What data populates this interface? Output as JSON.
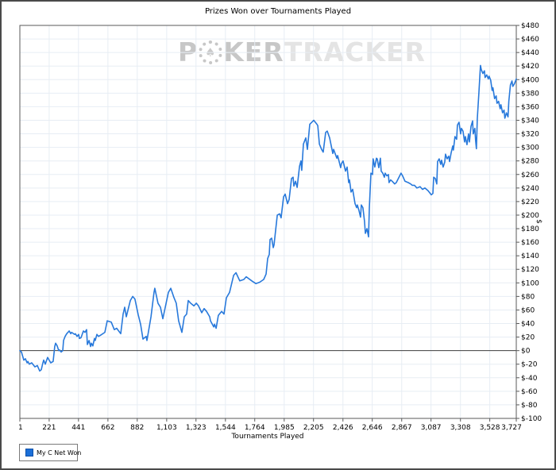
{
  "window": {
    "title": "Prizes Won over Tournaments Played"
  },
  "watermark": {
    "part1": "P",
    "chip": "spade",
    "part2": "KER",
    "part3": "TRACKER"
  },
  "legend": {
    "label": "My C Net Won",
    "swatch_color": "#1b6fd8"
  },
  "colors": {
    "line": "#2879db",
    "grid": "#e7edf4",
    "plot_border": "#5a5a5a",
    "zero_line": "#3c3c3c",
    "tick": "#5a5a5a",
    "label": "#000000"
  },
  "chart_data": {
    "type": "line",
    "title": "Prizes Won over Tournaments Played",
    "xlabel": "Tournaments Played",
    "ylabel": "$",
    "xlim": [
      1,
      3727
    ],
    "ylim": [
      -100,
      480
    ],
    "y_tick_step": 20,
    "y_tick_prefix": "$",
    "x_ticks": [
      1,
      221,
      441,
      662,
      882,
      1103,
      1323,
      1544,
      1764,
      1985,
      2205,
      2426,
      2646,
      2867,
      3087,
      3308,
      3528,
      3727
    ],
    "x_tick_labels": [
      "1",
      "221",
      "441",
      "662",
      "882",
      "1,103",
      "1,323",
      "1,544",
      "1,764",
      "1,985",
      "2,205",
      "2,426",
      "2,646",
      "2,867",
      "3,087",
      "3,308",
      "3,528",
      "3,727"
    ],
    "grid": true,
    "legend_position": "bottom-left",
    "series": [
      {
        "name": "My C Net Won",
        "color": "#2879db",
        "points": [
          [
            1,
            0
          ],
          [
            13,
            -2
          ],
          [
            31,
            -14
          ],
          [
            43,
            -12
          ],
          [
            55,
            -18
          ],
          [
            61,
            -16
          ],
          [
            72,
            -20
          ],
          [
            90,
            -18
          ],
          [
            114,
            -24
          ],
          [
            132,
            -22
          ],
          [
            150,
            -30
          ],
          [
            162,
            -28
          ],
          [
            174,
            -18
          ],
          [
            180,
            -14
          ],
          [
            192,
            -20
          ],
          [
            209,
            -10
          ],
          [
            221,
            -14
          ],
          [
            233,
            -18
          ],
          [
            251,
            -16
          ],
          [
            263,
            6
          ],
          [
            269,
            11
          ],
          [
            281,
            7
          ],
          [
            293,
            0
          ],
          [
            299,
            1
          ],
          [
            311,
            -2
          ],
          [
            323,
            0
          ],
          [
            329,
            15
          ],
          [
            341,
            21
          ],
          [
            353,
            25
          ],
          [
            371,
            29
          ],
          [
            383,
            25
          ],
          [
            389,
            27
          ],
          [
            412,
            24
          ],
          [
            418,
            25
          ],
          [
            430,
            21
          ],
          [
            442,
            24
          ],
          [
            448,
            18
          ],
          [
            460,
            19
          ],
          [
            478,
            29
          ],
          [
            490,
            27
          ],
          [
            502,
            31
          ],
          [
            508,
            9
          ],
          [
            520,
            15
          ],
          [
            532,
            6
          ],
          [
            538,
            11
          ],
          [
            549,
            7
          ],
          [
            561,
            18
          ],
          [
            567,
            15
          ],
          [
            579,
            24
          ],
          [
            591,
            21
          ],
          [
            609,
            23
          ],
          [
            639,
            27
          ],
          [
            657,
            44
          ],
          [
            687,
            42
          ],
          [
            710,
            31
          ],
          [
            728,
            33
          ],
          [
            758,
            25
          ],
          [
            776,
            54
          ],
          [
            788,
            64
          ],
          [
            800,
            50
          ],
          [
            830,
            74
          ],
          [
            848,
            80
          ],
          [
            865,
            76
          ],
          [
            889,
            53
          ],
          [
            907,
            39
          ],
          [
            925,
            17
          ],
          [
            949,
            21
          ],
          [
            955,
            15
          ],
          [
            985,
            50
          ],
          [
            1008,
            86
          ],
          [
            1014,
            92
          ],
          [
            1038,
            70
          ],
          [
            1056,
            64
          ],
          [
            1074,
            47
          ],
          [
            1116,
            86
          ],
          [
            1134,
            92
          ],
          [
            1158,
            78
          ],
          [
            1175,
            70
          ],
          [
            1193,
            44
          ],
          [
            1217,
            27
          ],
          [
            1235,
            50
          ],
          [
            1253,
            54
          ],
          [
            1265,
            74
          ],
          [
            1283,
            70
          ],
          [
            1307,
            66
          ],
          [
            1325,
            70
          ],
          [
            1342,
            66
          ],
          [
            1366,
            56
          ],
          [
            1384,
            62
          ],
          [
            1402,
            58
          ],
          [
            1426,
            50
          ],
          [
            1432,
            44
          ],
          [
            1456,
            35
          ],
          [
            1462,
            39
          ],
          [
            1474,
            33
          ],
          [
            1491,
            52
          ],
          [
            1515,
            58
          ],
          [
            1533,
            54
          ],
          [
            1551,
            78
          ],
          [
            1575,
            86
          ],
          [
            1605,
            111
          ],
          [
            1623,
            115
          ],
          [
            1652,
            103
          ],
          [
            1682,
            105
          ],
          [
            1700,
            109
          ],
          [
            1742,
            103
          ],
          [
            1772,
            99
          ],
          [
            1801,
            101
          ],
          [
            1831,
            105
          ],
          [
            1849,
            113
          ],
          [
            1861,
            136
          ],
          [
            1873,
            142
          ],
          [
            1879,
            164
          ],
          [
            1891,
            166
          ],
          [
            1903,
            152
          ],
          [
            1909,
            156
          ],
          [
            1933,
            200
          ],
          [
            1951,
            202
          ],
          [
            1962,
            196
          ],
          [
            1980,
            227
          ],
          [
            1992,
            231
          ],
          [
            2010,
            217
          ],
          [
            2022,
            223
          ],
          [
            2040,
            254
          ],
          [
            2052,
            256
          ],
          [
            2058,
            243
          ],
          [
            2070,
            250
          ],
          [
            2082,
            241
          ],
          [
            2100,
            272
          ],
          [
            2111,
            280
          ],
          [
            2117,
            266
          ],
          [
            2129,
            305
          ],
          [
            2147,
            314
          ],
          [
            2159,
            297
          ],
          [
            2177,
            334
          ],
          [
            2207,
            340
          ],
          [
            2231,
            334
          ],
          [
            2237,
            332
          ],
          [
            2249,
            305
          ],
          [
            2266,
            297
          ],
          [
            2278,
            293
          ],
          [
            2296,
            322
          ],
          [
            2308,
            324
          ],
          [
            2326,
            314
          ],
          [
            2350,
            291
          ],
          [
            2356,
            297
          ],
          [
            2380,
            284
          ],
          [
            2386,
            288
          ],
          [
            2409,
            270
          ],
          [
            2415,
            276
          ],
          [
            2427,
            280
          ],
          [
            2445,
            265
          ],
          [
            2457,
            271
          ],
          [
            2469,
            248
          ],
          [
            2475,
            252
          ],
          [
            2487,
            234
          ],
          [
            2499,
            238
          ],
          [
            2517,
            217
          ],
          [
            2529,
            211
          ],
          [
            2534,
            215
          ],
          [
            2546,
            207
          ],
          [
            2558,
            197
          ],
          [
            2564,
            215
          ],
          [
            2576,
            211
          ],
          [
            2588,
            191
          ],
          [
            2594,
            173
          ],
          [
            2606,
            180
          ],
          [
            2618,
            168
          ],
          [
            2624,
            211
          ],
          [
            2636,
            262
          ],
          [
            2648,
            260
          ],
          [
            2653,
            283
          ],
          [
            2665,
            271
          ],
          [
            2677,
            284
          ],
          [
            2683,
            283
          ],
          [
            2695,
            270
          ],
          [
            2707,
            284
          ],
          [
            2713,
            265
          ],
          [
            2725,
            262
          ],
          [
            2737,
            256
          ],
          [
            2743,
            262
          ],
          [
            2755,
            258
          ],
          [
            2767,
            260
          ],
          [
            2772,
            248
          ],
          [
            2784,
            252
          ],
          [
            2796,
            250
          ],
          [
            2814,
            246
          ],
          [
            2826,
            248
          ],
          [
            2862,
            262
          ],
          [
            2874,
            258
          ],
          [
            2892,
            250
          ],
          [
            2904,
            249
          ],
          [
            2916,
            248
          ],
          [
            2934,
            246
          ],
          [
            2946,
            244
          ],
          [
            2963,
            244
          ],
          [
            2981,
            240
          ],
          [
            3005,
            242
          ],
          [
            3023,
            238
          ],
          [
            3041,
            240
          ],
          [
            3065,
            236
          ],
          [
            3089,
            230
          ],
          [
            3101,
            232
          ],
          [
            3107,
            256
          ],
          [
            3119,
            254
          ],
          [
            3130,
            246
          ],
          [
            3136,
            279
          ],
          [
            3148,
            283
          ],
          [
            3160,
            275
          ],
          [
            3166,
            281
          ],
          [
            3178,
            271
          ],
          [
            3190,
            278
          ],
          [
            3196,
            290
          ],
          [
            3208,
            283
          ],
          [
            3220,
            287
          ],
          [
            3226,
            279
          ],
          [
            3238,
            292
          ],
          [
            3250,
            302
          ],
          [
            3255,
            296
          ],
          [
            3267,
            316
          ],
          [
            3279,
            312
          ],
          [
            3285,
            333
          ],
          [
            3297,
            337
          ],
          [
            3309,
            320
          ],
          [
            3315,
            328
          ],
          [
            3327,
            324
          ],
          [
            3339,
            308
          ],
          [
            3345,
            316
          ],
          [
            3357,
            304
          ],
          [
            3369,
            320
          ],
          [
            3375,
            308
          ],
          [
            3387,
            331
          ],
          [
            3399,
            339
          ],
          [
            3404,
            320
          ],
          [
            3416,
            328
          ],
          [
            3422,
            310
          ],
          [
            3428,
            298
          ],
          [
            3434,
            342
          ],
          [
            3446,
            380
          ],
          [
            3458,
            421
          ],
          [
            3464,
            415
          ],
          [
            3476,
            409
          ],
          [
            3488,
            413
          ],
          [
            3493,
            403
          ],
          [
            3505,
            407
          ],
          [
            3517,
            401
          ],
          [
            3523,
            405
          ],
          [
            3535,
            399
          ],
          [
            3546,
            384
          ],
          [
            3552,
            388
          ],
          [
            3564,
            372
          ],
          [
            3576,
            376
          ],
          [
            3582,
            365
          ],
          [
            3594,
            368
          ],
          [
            3606,
            357
          ],
          [
            3612,
            363
          ],
          [
            3624,
            351
          ],
          [
            3635,
            355
          ],
          [
            3641,
            343
          ],
          [
            3653,
            351
          ],
          [
            3665,
            345
          ],
          [
            3671,
            368
          ],
          [
            3683,
            392
          ],
          [
            3695,
            398
          ],
          [
            3701,
            390
          ],
          [
            3713,
            394
          ],
          [
            3725,
            400
          ],
          [
            3727,
            401
          ]
        ]
      }
    ]
  }
}
